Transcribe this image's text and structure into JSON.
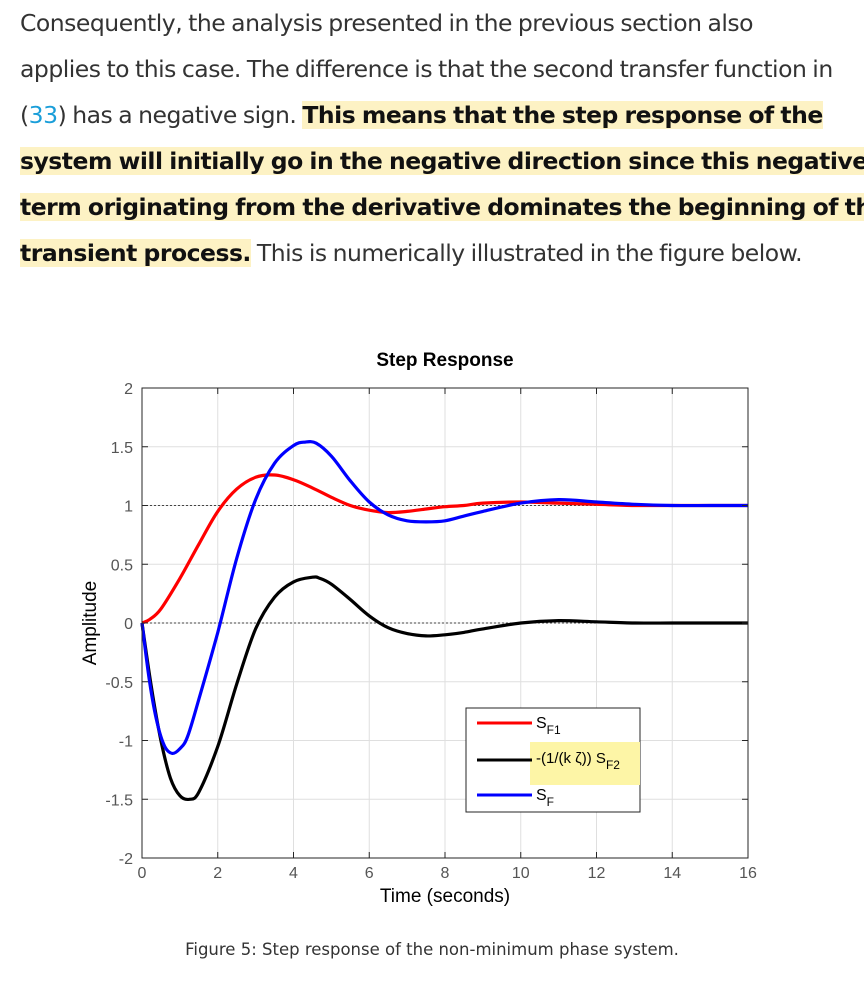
{
  "paragraph": {
    "line1": "Consequently, the analysis presented in the previous section also",
    "line2": "applies to this case. The difference is that the second transfer function in",
    "line3_open": "(",
    "line3_ref": "33",
    "line3_rest": ") has a negative sign. ",
    "line3_hl": "This means that the step response of the",
    "line4_hl": "system will initially go in the negative direction since this negative",
    "line5_hl": "term originating from the derivative dominates the beginning of the",
    "line6_hl": "transient process.",
    "line6_rest": " This is numerically illustrated in the figure below."
  },
  "caption": "Figure 5: Step response of the non-minimum phase system.",
  "colors": {
    "sf1": "#ff0000",
    "sf2": "#000000",
    "sf": "#0000ff",
    "legend_highlight": "#fdf5a6",
    "link": "#1a9ed9"
  },
  "chart_data": {
    "type": "line",
    "title": "Step Response",
    "xlabel": "Time (seconds)",
    "ylabel": "Amplitude",
    "xlim": [
      0,
      16
    ],
    "ylim": [
      -2,
      2
    ],
    "xticks": [
      0,
      2,
      4,
      6,
      8,
      10,
      12,
      14,
      16
    ],
    "yticks": [
      -2,
      -1.5,
      -1,
      -0.5,
      0,
      0.5,
      1,
      1.5,
      2
    ],
    "reference_lines": [
      0,
      1
    ],
    "grid": true,
    "legend_position": "lower-center",
    "series": [
      {
        "name": "S_F1",
        "legend_main": "S",
        "legend_sub": "F1",
        "color": "#ff0000",
        "x": [
          0,
          0.2,
          0.5,
          1,
          1.5,
          2,
          2.5,
          3,
          3.5,
          4,
          4.5,
          5,
          5.5,
          6,
          6.5,
          7,
          7.5,
          8,
          8.5,
          9,
          10,
          11,
          12,
          13,
          14,
          15,
          16
        ],
        "y": [
          0,
          0.03,
          0.12,
          0.38,
          0.67,
          0.95,
          1.14,
          1.24,
          1.26,
          1.22,
          1.15,
          1.07,
          1.0,
          0.96,
          0.94,
          0.95,
          0.97,
          0.99,
          1.0,
          1.02,
          1.03,
          1.02,
          1.01,
          1.0,
          1.0,
          1.0,
          1.0
        ]
      },
      {
        "name": "-(1/(k ζ)) S_F2",
        "legend_main": "-(1/(k ζ)) S",
        "legend_sub": "F2",
        "color": "#000000",
        "x": [
          0,
          0.25,
          0.5,
          0.75,
          1,
          1.25,
          1.5,
          2,
          2.5,
          3,
          3.5,
          4,
          4.5,
          4.7,
          5,
          5.5,
          6,
          6.5,
          7,
          7.5,
          8,
          8.5,
          9,
          10,
          11,
          12,
          13,
          14,
          15,
          16
        ],
        "y": [
          0,
          -0.55,
          -1.0,
          -1.32,
          -1.47,
          -1.5,
          -1.44,
          -1.05,
          -0.52,
          -0.05,
          0.22,
          0.35,
          0.39,
          0.38,
          0.33,
          0.2,
          0.06,
          -0.04,
          -0.09,
          -0.11,
          -0.1,
          -0.08,
          -0.05,
          0.0,
          0.02,
          0.01,
          0.0,
          0.0,
          0.0,
          0.0
        ]
      },
      {
        "name": "S_F",
        "legend_main": "S",
        "legend_sub": "F",
        "color": "#0000ff",
        "x": [
          0,
          0.2,
          0.4,
          0.6,
          0.8,
          1.0,
          1.2,
          1.5,
          2,
          2.5,
          3,
          3.5,
          4,
          4.3,
          4.6,
          5,
          5.5,
          6,
          6.5,
          7,
          7.5,
          8,
          8.5,
          9,
          10,
          11,
          12,
          13,
          14,
          15,
          16
        ],
        "y": [
          0,
          -0.5,
          -0.85,
          -1.05,
          -1.11,
          -1.07,
          -0.97,
          -0.65,
          -0.08,
          0.55,
          1.05,
          1.36,
          1.51,
          1.54,
          1.53,
          1.42,
          1.21,
          1.03,
          0.92,
          0.87,
          0.86,
          0.87,
          0.91,
          0.95,
          1.02,
          1.05,
          1.03,
          1.01,
          1.0,
          1.0,
          1.0
        ]
      }
    ]
  }
}
